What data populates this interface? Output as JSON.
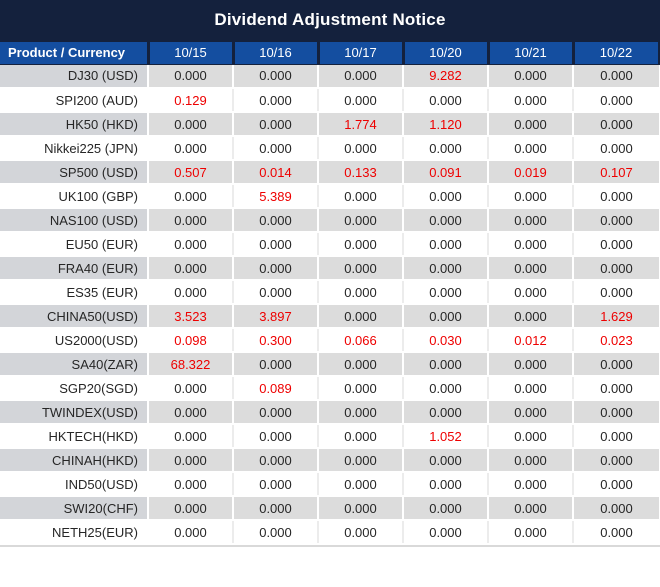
{
  "title": "Dividend Adjustment Notice",
  "table": {
    "product_header": "Product / Currency",
    "date_headers": [
      "10/15",
      "10/16",
      "10/17",
      "10/20",
      "10/21",
      "10/22"
    ],
    "rows": [
      {
        "product": "DJ30 (USD)",
        "values": [
          "0.000",
          "0.000",
          "0.000",
          "9.282",
          "0.000",
          "0.000"
        ]
      },
      {
        "product": "SPI200 (AUD)",
        "values": [
          "0.129",
          "0.000",
          "0.000",
          "0.000",
          "0.000",
          "0.000"
        ]
      },
      {
        "product": "HK50 (HKD)",
        "values": [
          "0.000",
          "0.000",
          "1.774",
          "1.120",
          "0.000",
          "0.000"
        ]
      },
      {
        "product": "Nikkei225 (JPN)",
        "values": [
          "0.000",
          "0.000",
          "0.000",
          "0.000",
          "0.000",
          "0.000"
        ]
      },
      {
        "product": "SP500 (USD)",
        "values": [
          "0.507",
          "0.014",
          "0.133",
          "0.091",
          "0.019",
          "0.107"
        ]
      },
      {
        "product": "UK100 (GBP)",
        "values": [
          "0.000",
          "5.389",
          "0.000",
          "0.000",
          "0.000",
          "0.000"
        ]
      },
      {
        "product": "NAS100 (USD)",
        "values": [
          "0.000",
          "0.000",
          "0.000",
          "0.000",
          "0.000",
          "0.000"
        ]
      },
      {
        "product": "EU50 (EUR)",
        "values": [
          "0.000",
          "0.000",
          "0.000",
          "0.000",
          "0.000",
          "0.000"
        ]
      },
      {
        "product": "FRA40 (EUR)",
        "values": [
          "0.000",
          "0.000",
          "0.000",
          "0.000",
          "0.000",
          "0.000"
        ]
      },
      {
        "product": "ES35 (EUR)",
        "values": [
          "0.000",
          "0.000",
          "0.000",
          "0.000",
          "0.000",
          "0.000"
        ]
      },
      {
        "product": "CHINA50(USD)",
        "values": [
          "3.523",
          "3.897",
          "0.000",
          "0.000",
          "0.000",
          "1.629"
        ]
      },
      {
        "product": "US2000(USD)",
        "values": [
          "0.098",
          "0.300",
          "0.066",
          "0.030",
          "0.012",
          "0.023"
        ]
      },
      {
        "product": "SA40(ZAR)",
        "values": [
          "68.322",
          "0.000",
          "0.000",
          "0.000",
          "0.000",
          "0.000"
        ]
      },
      {
        "product": "SGP20(SGD)",
        "values": [
          "0.000",
          "0.089",
          "0.000",
          "0.000",
          "0.000",
          "0.000"
        ]
      },
      {
        "product": "TWINDEX(USD)",
        "values": [
          "0.000",
          "0.000",
          "0.000",
          "0.000",
          "0.000",
          "0.000"
        ]
      },
      {
        "product": "HKTECH(HKD)",
        "values": [
          "0.000",
          "0.000",
          "0.000",
          "1.052",
          "0.000",
          "0.000"
        ]
      },
      {
        "product": "CHINAH(HKD)",
        "values": [
          "0.000",
          "0.000",
          "0.000",
          "0.000",
          "0.000",
          "0.000"
        ]
      },
      {
        "product": "IND50(USD)",
        "values": [
          "0.000",
          "0.000",
          "0.000",
          "0.000",
          "0.000",
          "0.000"
        ]
      },
      {
        "product": "SWI20(CHF)",
        "values": [
          "0.000",
          "0.000",
          "0.000",
          "0.000",
          "0.000",
          "0.000"
        ]
      },
      {
        "product": "NETH25(EUR)",
        "values": [
          "0.000",
          "0.000",
          "0.000",
          "0.000",
          "0.000",
          "0.000"
        ]
      }
    ]
  },
  "colors": {
    "title_bg": "#14213d",
    "header_bg": "#144ea0",
    "header_text": "#ffffff",
    "row_gray": "#dcdcdc",
    "row_gray_product": "#d3d5d9",
    "value_default": "#262626",
    "value_highlight": "#ee0000"
  }
}
